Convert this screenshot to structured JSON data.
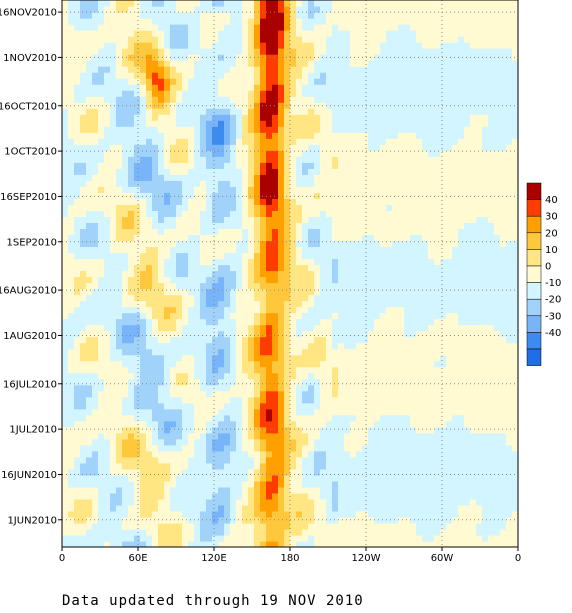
{
  "chart_data": {
    "type": "heatmap",
    "title": "",
    "xlabel": "",
    "ylabel": "",
    "x_tick_labels": [
      "0",
      "60E",
      "120E",
      "180",
      "120W",
      "60W",
      "0"
    ],
    "x_ticks_deg": [
      0,
      60,
      120,
      180,
      240,
      300,
      360
    ],
    "y_tick_labels": [
      "1JUN2010",
      "16JUN2010",
      "1JUL2010",
      "16JUL2010",
      "1AUG2010",
      "16AUG2010",
      "1SEP2010",
      "16SEP2010",
      "1OCT2010",
      "16OCT2010",
      "1NOV2010",
      "16NOV2010"
    ],
    "y_ticks_day": [
      0,
      15,
      30,
      45,
      61,
      76,
      92,
      107,
      122,
      137,
      153,
      168
    ],
    "ylim_day": [
      -9,
      172
    ],
    "xlim_deg": [
      0,
      360
    ],
    "grid": true,
    "legend_placement": "right",
    "colorbar_levels": [
      -40,
      -30,
      -20,
      -10,
      0,
      10,
      20,
      30,
      40
    ],
    "colorbar_labels": [
      "40",
      "30",
      "20",
      "10",
      "0",
      "-10",
      "-20",
      "-30",
      "-40"
    ],
    "colors": {
      "lt_neg50": "#1e6ee6",
      "neg50_neg40": "#1e6ee6",
      "neg40_neg30": "#3c8cf0",
      "neg30_neg20": "#78b4fa",
      "neg20_neg10": "#a0d2fa",
      "neg10_0": "#d2f5ff",
      "0_10": "#fffad2",
      "10_20": "#ffe682",
      "20_30": "#ffc83c",
      "30_40": "#ffa000",
      "40_50": "#ff3c00",
      "gt50": "#aa0000"
    }
  },
  "footer": "Data updated through 19 NOV 2010"
}
